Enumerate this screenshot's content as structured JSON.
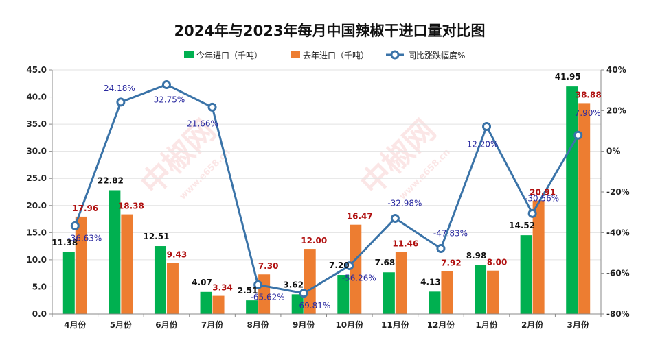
{
  "chart_data": {
    "type": "bar",
    "title": "2024年与2023年每月中国辣椒干进口量对比图",
    "categories": [
      "4月份",
      "5月份",
      "6月份",
      "7月份",
      "8月份",
      "9月份",
      "10月份",
      "11月份",
      "12月份",
      "1月份",
      "2月份",
      "3月份"
    ],
    "series": [
      {
        "name": "今年进口（千吨）",
        "type": "bar",
        "axis": "left",
        "color": "#00b050",
        "values": [
          11.38,
          22.82,
          12.51,
          4.07,
          2.51,
          3.62,
          7.2,
          7.68,
          4.13,
          8.98,
          14.52,
          41.95
        ],
        "labels": [
          "11.38",
          "22.82",
          "12.51",
          "4.07",
          "2.51",
          "3.62",
          "7.20",
          "7.68",
          "4.13",
          "8.98",
          "14.52",
          "41.95"
        ]
      },
      {
        "name": "去年进口（千吨）",
        "type": "bar",
        "axis": "left",
        "color": "#ed7d31",
        "values": [
          17.96,
          18.38,
          9.43,
          3.34,
          7.3,
          12.0,
          16.47,
          11.46,
          7.92,
          8.0,
          20.91,
          38.88
        ],
        "labels": [
          "17.96",
          "18.38",
          "9.43",
          "3.34",
          "7.30",
          "12.00",
          "16.47",
          "11.46",
          "7.92",
          "8.00",
          "20.91",
          "38.88"
        ]
      },
      {
        "name": "同比涨跌幅度%",
        "type": "line",
        "axis": "right",
        "color": "#3a73a8",
        "values": [
          -36.63,
          24.18,
          32.75,
          21.66,
          -65.62,
          -69.81,
          -56.26,
          -32.98,
          -47.83,
          12.2,
          -30.56,
          7.9
        ],
        "labels": [
          "-36.63%",
          "24.18%",
          "32.75%",
          "21.66%",
          "-65.62%",
          "-69.81%",
          "-56.26%",
          "-32.98%",
          "-47.83%",
          "12.20%",
          "-30.56%",
          "7.90%"
        ]
      }
    ],
    "y_left": {
      "min": 0,
      "max": 45,
      "step": 5,
      "tick_labels": [
        "0.0",
        "5.0",
        "10.0",
        "15.0",
        "20.0",
        "25.0",
        "30.0",
        "35.0",
        "40.0",
        "45.0"
      ]
    },
    "y_right": {
      "min": -80,
      "max": 40,
      "step": 20,
      "tick_labels": [
        "-80%",
        "-60%",
        "-40%",
        "-20%",
        "0%",
        "20%",
        "40%"
      ]
    },
    "legend_position": "top-center",
    "grid": true,
    "watermark": {
      "brand": "中椒网",
      "url": "www.e658.cn"
    }
  }
}
